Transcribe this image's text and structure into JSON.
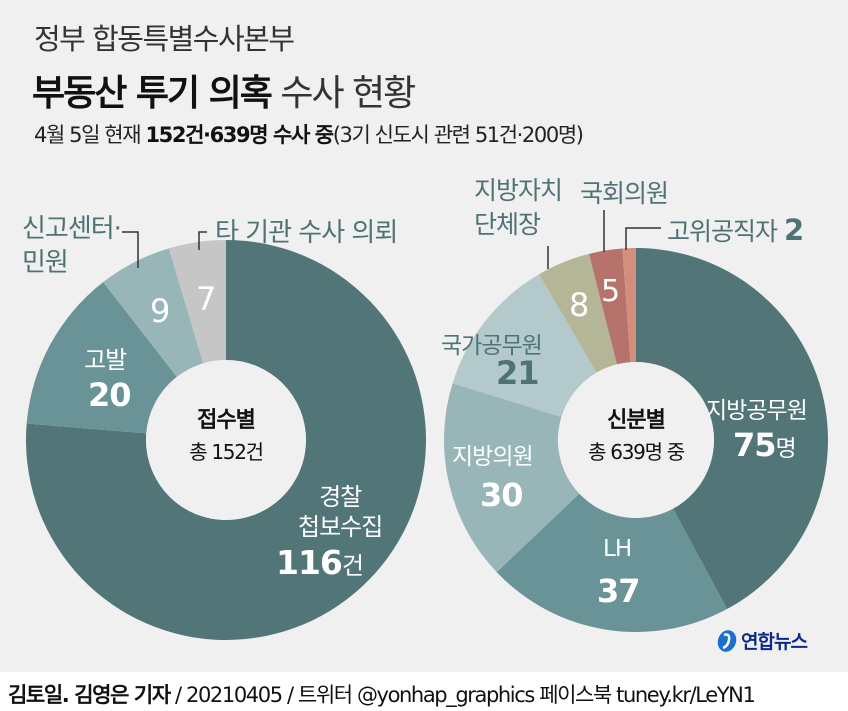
{
  "header": {
    "subtitle": "정부 합동특별수사본부",
    "title_bold": "부동산 투기 의혹",
    "title_normal": "수사 현황",
    "summary_prefix": "4월 5일 현재",
    "summary_bold": "152건·639명 수사 중",
    "summary_suffix": "(3기 신도시 관련 51건·200명)"
  },
  "colors": {
    "background": "#f0f0f0",
    "dark_teal": "#527577",
    "mid_teal": "#6a9397",
    "light_teal": "#98b5b8",
    "pale_teal": "#b3c9cc",
    "gray": "#c6c6c6",
    "khaki": "#b5b597",
    "brick": "#b5736b",
    "salmon": "#d48e7d",
    "label_dark": "#4f7274"
  },
  "chart_data": [
    {
      "type": "pie",
      "variant": "donut",
      "title": "접수별",
      "center_total": "총 152건",
      "unit": "건",
      "start": "top",
      "direction": "clockwise",
      "slices": [
        {
          "label": "경찰 첩보수집",
          "label_line1": "경찰",
          "label_line2": "첩보수집",
          "value": 116,
          "value_text": "116",
          "unit_text": "건",
          "color": "#527577"
        },
        {
          "label": "고발",
          "value": 20,
          "value_text": "20",
          "color": "#6a9397"
        },
        {
          "label": "신고센터·민원",
          "label_line1": "신고센터·",
          "label_line2": "민원",
          "value": 9,
          "value_text": "9",
          "color": "#98b5b8"
        },
        {
          "label": "타 기관 수사 의뢰",
          "value": 7,
          "value_text": "7",
          "color": "#c6c6c6"
        }
      ]
    },
    {
      "type": "pie",
      "variant": "donut",
      "title": "신분별",
      "center_total": "총 639명 중",
      "unit": "명",
      "start": "top",
      "direction": "clockwise",
      "slices": [
        {
          "label": "지방공무원",
          "value": 75,
          "value_text": "75",
          "unit_text": "명",
          "color": "#527577"
        },
        {
          "label": "LH",
          "value": 37,
          "value_text": "37",
          "color": "#6a9397"
        },
        {
          "label": "지방의원",
          "value": 30,
          "value_text": "30",
          "color": "#98b5b8"
        },
        {
          "label": "국가공무원",
          "value": 21,
          "value_text": "21",
          "color": "#b3c9cc"
        },
        {
          "label": "지방자치 단체장",
          "label_line1": "지방자치",
          "label_line2": "단체장",
          "value": 8,
          "value_text": "8",
          "color": "#b5b597"
        },
        {
          "label": "국회의원",
          "value": 5,
          "value_text": "5",
          "color": "#b5736b"
        },
        {
          "label": "고위공직자",
          "value": 2,
          "value_text": "2",
          "color": "#d48e7d"
        }
      ]
    }
  ],
  "logo": {
    "text": "연합뉴스"
  },
  "footer": {
    "authors": "김토일. 김영은 기자",
    "rest": " / 20210405 / 트위터 @yonhap_graphics  페이스북 tuney.kr/LeYN1"
  }
}
